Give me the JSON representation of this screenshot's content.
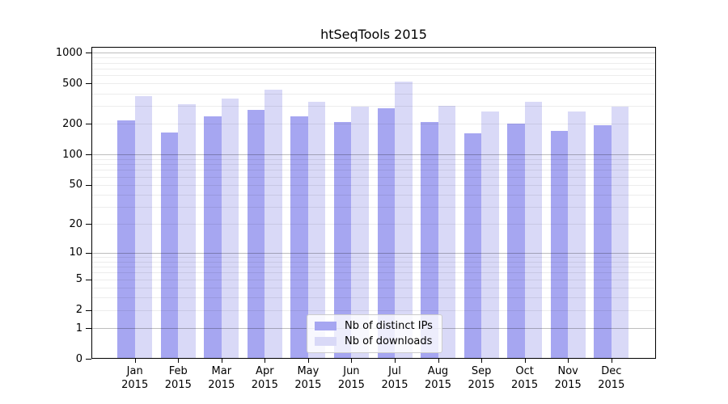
{
  "title": "htSeqTools 2015",
  "colors": {
    "distinct_ips_bar": "#a6a6f1",
    "downloads_bar": "#d9d9f7",
    "axis": "#000000",
    "grid_major": "#bdbdbd",
    "grid_minor": "#ececec",
    "legend_border": "#cccccc",
    "legend_background": "rgba(255,255,255,0.8)"
  },
  "chart_data": {
    "type": "bar",
    "title": "htSeqTools 2015",
    "scale": "log10(value+1)",
    "grid": "on",
    "legend_position": "lower center",
    "categories": [
      "Jan",
      "Feb",
      "Mar",
      "Apr",
      "May",
      "Jun",
      "Jul",
      "Aug",
      "Sep",
      "Oct",
      "Nov",
      "Dec"
    ],
    "x_year": "2015",
    "series": [
      {
        "name": "Nb of distinct IPs",
        "color": "#a6a6f1",
        "values": [
          211,
          162,
          233,
          268,
          233,
          205,
          280,
          207,
          158,
          199,
          168,
          189
        ]
      },
      {
        "name": "Nb of downloads",
        "color": "#d9d9f7",
        "values": [
          368,
          306,
          352,
          430,
          322,
          293,
          514,
          296,
          258,
          322,
          261,
          292
        ]
      }
    ],
    "y_ticks": [
      1000,
      500,
      200,
      100,
      50,
      20,
      10,
      5,
      2,
      1,
      0
    ],
    "ylim": [
      0,
      1150
    ],
    "xlabel": "",
    "ylabel": ""
  },
  "legend": {
    "items": [
      {
        "label": "Nb of distinct IPs"
      },
      {
        "label": "Nb of downloads"
      }
    ]
  }
}
